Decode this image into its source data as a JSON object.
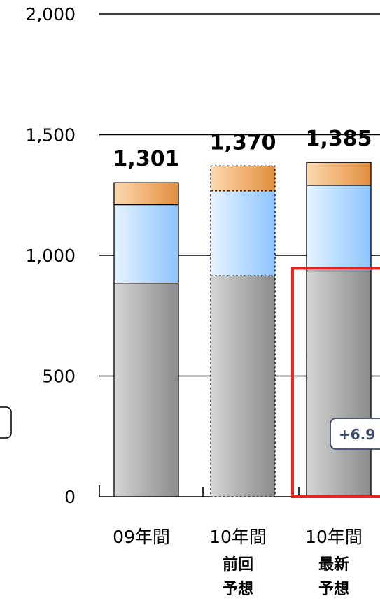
{
  "chart_data": {
    "type": "bar",
    "stacked": true,
    "categories": [
      "09年間",
      "10年間",
      "10年間"
    ],
    "subtitles": [
      [],
      [
        "前回",
        "予想"
      ],
      [
        "最新",
        "予想"
      ]
    ],
    "series": [
      {
        "values": [
          885,
          915,
          935
        ],
        "color": "#a8a8a8"
      },
      {
        "values": [
          325,
          352,
          355
        ],
        "color": "#b8dcff"
      },
      {
        "values": [
          91,
          103,
          95
        ],
        "color": "#eeb070"
      }
    ],
    "totals": [
      "1,301",
      "1,370",
      "1,385"
    ],
    "yticks": [
      0,
      500,
      1000,
      1500,
      2000
    ],
    "ytick_labels": [
      "0",
      "500",
      "1,000",
      "1,500",
      "2,000"
    ],
    "ylim": [
      0,
      2000
    ],
    "grid": true,
    "dashed_bar_index": 1,
    "highlight_bar_index": 2,
    "annotation": "+6.9",
    "highlight_color": "#e8231f"
  }
}
